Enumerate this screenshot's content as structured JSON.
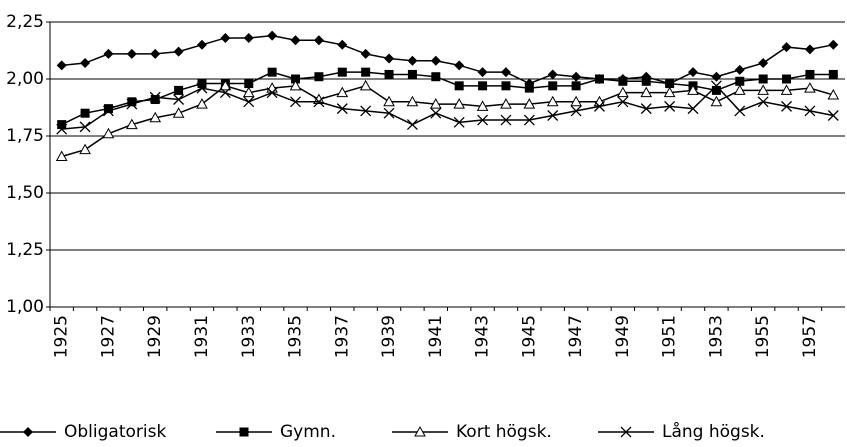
{
  "chart_data": {
    "type": "line",
    "categories": [
      "1925",
      null,
      "1927",
      null,
      "1929",
      null,
      "1931",
      null,
      "1933",
      null,
      "1935",
      null,
      "1937",
      null,
      "1939",
      null,
      "1941",
      null,
      "1943",
      null,
      "1945",
      null,
      "1947",
      null,
      "1949",
      null,
      "1951",
      null,
      "1953",
      null,
      "1955",
      null,
      "1957",
      null
    ],
    "series": [
      {
        "name": "Obligatorisk",
        "color": "#000000",
        "marker": "diamond",
        "values": [
          2.06,
          2.07,
          2.11,
          2.11,
          2.11,
          2.12,
          2.15,
          2.18,
          2.18,
          2.19,
          2.17,
          2.17,
          2.15,
          2.11,
          2.09,
          2.08,
          2.08,
          2.06,
          2.03,
          2.03,
          1.98,
          2.02,
          2.01,
          2.0,
          2.0,
          2.01,
          1.98,
          2.03,
          2.01,
          2.04,
          2.07,
          2.14,
          2.13,
          2.15
        ]
      },
      {
        "name": "Gymn.",
        "color": "#000000",
        "marker": "square",
        "values": [
          1.8,
          1.85,
          1.87,
          1.9,
          1.91,
          1.95,
          1.98,
          1.98,
          1.98,
          2.03,
          2.0,
          2.01,
          2.03,
          2.03,
          2.02,
          2.02,
          2.01,
          1.97,
          1.97,
          1.97,
          1.96,
          1.97,
          1.97,
          2.0,
          1.99,
          1.99,
          1.98,
          1.97,
          1.95,
          1.99,
          2.0,
          2.0,
          2.02,
          2.02
        ]
      },
      {
        "name": "Kort högsk.",
        "color": "#000000",
        "marker": "triangle",
        "values": [
          1.66,
          1.69,
          1.76,
          1.8,
          1.83,
          1.85,
          1.89,
          1.97,
          1.94,
          1.96,
          1.97,
          1.91,
          1.94,
          1.97,
          1.9,
          1.9,
          1.89,
          1.89,
          1.88,
          1.89,
          1.89,
          1.9,
          1.9,
          1.9,
          1.94,
          1.94,
          1.94,
          1.95,
          1.9,
          1.95,
          1.95,
          1.95,
          1.96,
          1.93
        ]
      },
      {
        "name": "Lång högsk.",
        "color": "#000000",
        "marker": "x",
        "values": [
          1.78,
          1.79,
          1.86,
          1.89,
          1.92,
          1.91,
          1.96,
          1.94,
          1.9,
          1.94,
          1.9,
          1.9,
          1.87,
          1.86,
          1.85,
          1.8,
          1.85,
          1.81,
          1.82,
          1.82,
          1.82,
          1.84,
          1.86,
          1.88,
          1.9,
          1.87,
          1.88,
          1.87,
          1.97,
          1.86,
          1.9,
          1.88,
          1.86,
          1.84
        ]
      }
    ],
    "ylim": [
      1.0,
      2.25
    ],
    "yticks": [
      {
        "value": 1.0,
        "label": "1,00"
      },
      {
        "value": 1.25,
        "label": "1,25"
      },
      {
        "value": 1.5,
        "label": "1,50"
      },
      {
        "value": 1.75,
        "label": "1,75"
      },
      {
        "value": 2.0,
        "label": "2,00"
      },
      {
        "value": 2.25,
        "label": "2,25"
      }
    ],
    "grid": true,
    "legend": "bottom"
  }
}
